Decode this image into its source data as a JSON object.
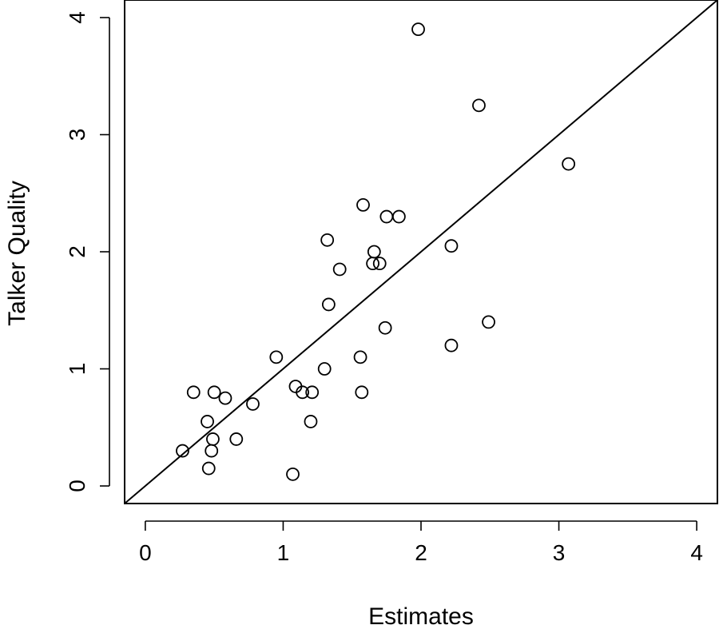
{
  "chart_data": {
    "type": "scatter",
    "xlabel": "Estimates",
    "ylabel": "Talker Quality",
    "xlim": [
      -0.15,
      4.15
    ],
    "ylim": [
      -0.15,
      4.15
    ],
    "xticks": [
      0,
      1,
      2,
      3,
      4
    ],
    "yticks": [
      0,
      1,
      2,
      3,
      4
    ],
    "xtick_labels": [
      "0",
      "1",
      "2",
      "3",
      "4"
    ],
    "ytick_labels": [
      "0",
      "1",
      "2",
      "3",
      "4"
    ],
    "reference_line": {
      "intercept": 0,
      "slope": 1
    },
    "grid": false,
    "marker": "open-circle",
    "points": [
      {
        "x": 1.98,
        "y": 3.9
      },
      {
        "x": 2.42,
        "y": 3.25
      },
      {
        "x": 3.07,
        "y": 2.75
      },
      {
        "x": 1.58,
        "y": 2.4
      },
      {
        "x": 1.75,
        "y": 2.3
      },
      {
        "x": 1.84,
        "y": 2.3
      },
      {
        "x": 1.32,
        "y": 2.1
      },
      {
        "x": 2.22,
        "y": 2.05
      },
      {
        "x": 1.66,
        "y": 2.0
      },
      {
        "x": 1.65,
        "y": 1.9
      },
      {
        "x": 1.7,
        "y": 1.9
      },
      {
        "x": 1.41,
        "y": 1.85
      },
      {
        "x": 1.33,
        "y": 1.55
      },
      {
        "x": 2.49,
        "y": 1.4
      },
      {
        "x": 1.74,
        "y": 1.35
      },
      {
        "x": 2.22,
        "y": 1.2
      },
      {
        "x": 0.95,
        "y": 1.1
      },
      {
        "x": 1.56,
        "y": 1.1
      },
      {
        "x": 1.3,
        "y": 1.0
      },
      {
        "x": 1.09,
        "y": 0.85
      },
      {
        "x": 0.35,
        "y": 0.8
      },
      {
        "x": 0.5,
        "y": 0.8
      },
      {
        "x": 1.14,
        "y": 0.8
      },
      {
        "x": 1.21,
        "y": 0.8
      },
      {
        "x": 1.57,
        "y": 0.8
      },
      {
        "x": 0.58,
        "y": 0.75
      },
      {
        "x": 0.78,
        "y": 0.7
      },
      {
        "x": 0.45,
        "y": 0.55
      },
      {
        "x": 1.2,
        "y": 0.55
      },
      {
        "x": 0.49,
        "y": 0.4
      },
      {
        "x": 0.66,
        "y": 0.4
      },
      {
        "x": 0.27,
        "y": 0.3
      },
      {
        "x": 0.48,
        "y": 0.3
      },
      {
        "x": 0.46,
        "y": 0.15
      },
      {
        "x": 1.07,
        "y": 0.1
      }
    ]
  }
}
